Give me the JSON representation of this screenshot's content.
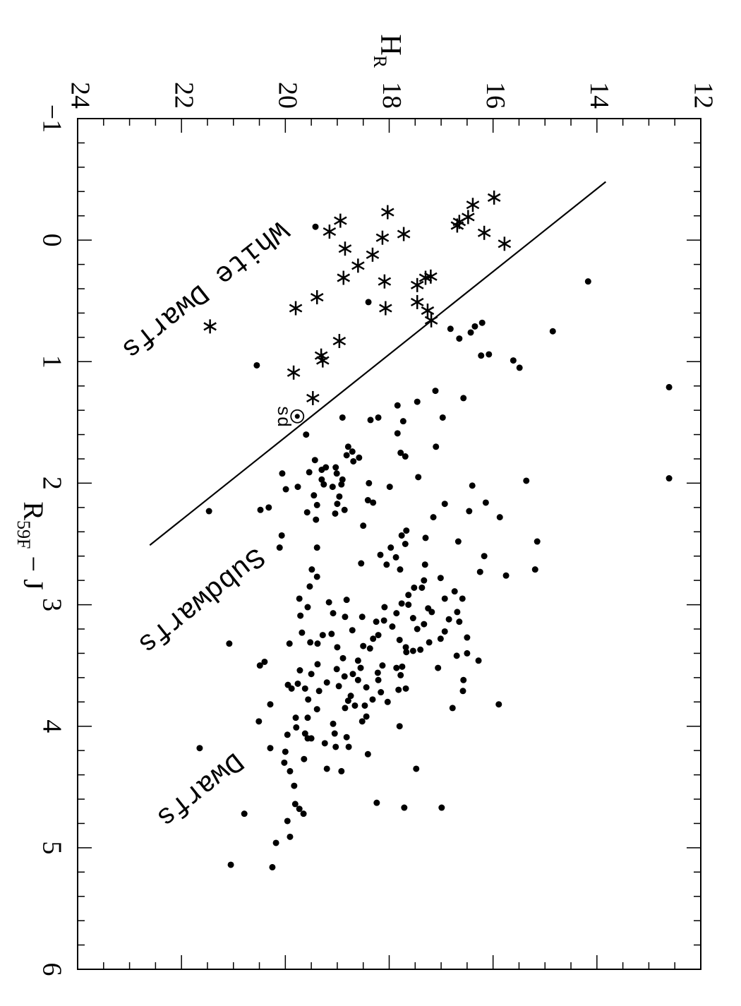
{
  "chart_data": {
    "type": "scatter",
    "xlabel": "R",
    "xlabel_sub": "59F",
    "xlabel_rest": " − J",
    "ylabel": "H",
    "ylabel_sub": "R",
    "xlim": [
      -1,
      6
    ],
    "xticks": [
      {
        "value": -1,
        "label": "−1"
      },
      0,
      1,
      2,
      3,
      4,
      5,
      6
    ],
    "xminor_ticks": [
      -0.8,
      -0.6,
      -0.4,
      -0.2,
      0.2,
      0.4,
      0.6,
      0.8,
      1.2,
      1.4,
      1.6,
      1.8,
      2.2,
      2.4,
      2.6,
      2.8,
      3.2,
      3.4,
      3.6,
      3.8,
      4.2,
      4.4,
      4.6,
      4.8,
      5.2,
      5.4,
      5.6,
      5.8
    ],
    "ylim": [
      24,
      12
    ],
    "yticks": [
      24,
      22,
      20,
      18,
      16,
      14,
      12
    ],
    "yminor_ticks": [
      23.5,
      23,
      22.5,
      21.5,
      21,
      20.5,
      19.5,
      19,
      18.5,
      17.5,
      17,
      16.5,
      15.5,
      15,
      14.5,
      13.5,
      13,
      12.5
    ],
    "annotations": [
      "White Dwarfs",
      "Subdwarfs",
      "Dwarfs",
      "sd"
    ],
    "series": [
      {
        "marker": "dot",
        "color": "#000000",
        "x": [
          0.34,
          0.75,
          0.68,
          0.71,
          0.76,
          0.81,
          0.73,
          0.94,
          0.95,
          0.99,
          1.05,
          0.51,
          -0.11,
          1.03,
          1.21,
          1.96,
          1.24,
          1.3,
          1.33,
          1.36,
          1.46,
          1.48,
          1.46,
          1.46,
          1.49,
          1.6,
          1.59,
          1.7,
          1.75,
          1.78,
          1.7,
          1.77,
          1.82,
          1.74,
          1.79,
          1.87,
          1.81,
          1.91,
          1.89,
          1.87,
          1.92,
          1.97,
          2.01,
          1.92,
          2.03,
          2.05,
          2.01,
          1.97,
          2.03,
          2.11,
          2.1,
          2.18,
          2.24,
          2.17,
          2.25,
          2.22,
          2.0,
          2.14,
          2.16,
          2.03,
          1.95,
          1.98,
          2.02,
          2.17,
          2.23,
          2.28,
          2.16,
          2.28,
          2.45,
          2.39,
          2.43,
          2.53,
          2.35,
          2.2,
          2.22,
          2.3,
          2.23,
          2.43,
          2.53,
          2.53,
          2.48,
          2.48,
          2.6,
          2.76,
          2.71,
          2.73,
          2.67,
          2.8,
          2.86,
          2.5,
          2.71,
          2.61,
          2.59,
          2.66,
          2.67,
          2.77,
          2.71,
          2.85,
          3.02,
          2.95,
          3.09,
          2.98,
          3.1,
          2.96,
          3.07,
          3.21,
          3.1,
          3.14,
          3.02,
          3.07,
          2.99,
          2.92,
          3.0,
          3.11,
          3.2,
          3.16,
          3.03,
          2.86,
          2.78,
          2.95,
          2.89,
          3.06,
          2.95,
          3.14,
          3.22,
          3.12,
          3.06,
          3.31,
          3.28,
          3.27,
          3.4,
          3.46,
          3.42,
          3.52,
          3.62,
          3.71,
          3.82,
          3.85,
          3.38,
          3.35,
          3.29,
          3.18,
          3.13,
          3.25,
          3.28,
          3.36,
          3.34,
          3.46,
          3.44,
          3.35,
          3.24,
          3.25,
          3.32,
          3.23,
          3.32,
          3.31,
          3.32,
          3.47,
          3.5,
          3.49,
          3.54,
          3.65,
          3.64,
          3.67,
          3.75,
          3.62,
          3.68,
          3.62,
          3.5,
          3.52,
          3.51,
          3.39,
          3.37,
          3.66,
          3.69,
          3.71,
          3.79,
          3.83,
          3.83,
          3.78,
          3.72,
          3.8,
          3.7,
          3.69,
          3.58,
          3.56,
          3.52,
          3.57,
          3.59,
          3.53,
          3.57,
          3.69,
          3.78,
          3.86,
          3.93,
          4.06,
          4.1,
          4.01,
          3.93,
          4.07,
          3.82,
          3.96,
          4.21,
          4.18,
          4.3,
          4.37,
          4.27,
          4.14,
          4.17,
          4.06,
          3.98,
          3.85,
          4.09,
          4.17,
          3.96,
          3.92,
          4.23,
          4.37,
          4.35,
          4.1,
          4.49,
          4.64,
          4.68,
          4.72,
          4.78,
          4.91,
          4.96,
          5.16,
          5.14,
          4.18,
          4.72,
          4.63,
          4.67,
          4.67,
          4.35,
          4.0
        ],
        "values": [
          14.17,
          14.85,
          16.21,
          16.35,
          16.43,
          16.65,
          16.82,
          16.08,
          16.23,
          15.61,
          15.49,
          18.4,
          19.42,
          20.55,
          12.61,
          12.61,
          17.11,
          16.57,
          17.46,
          17.84,
          16.97,
          18.36,
          18.21,
          18.9,
          17.73,
          19.6,
          17.84,
          17.1,
          17.78,
          17.69,
          18.79,
          18.82,
          18.69,
          18.71,
          18.58,
          19.03,
          19.43,
          19.54,
          19.3,
          19.22,
          19.01,
          18.9,
          18.92,
          20.06,
          19.76,
          19.99,
          19.26,
          19.3,
          19.09,
          18.96,
          19.45,
          19.39,
          19.58,
          19.0,
          19.04,
          18.86,
          18.39,
          18.41,
          18.31,
          17.99,
          17.44,
          15.36,
          16.4,
          16.93,
          16.46,
          15.87,
          16.14,
          17.15,
          17.3,
          17.67,
          17.76,
          17.97,
          18.5,
          20.32,
          20.48,
          19.41,
          21.47,
          20.07,
          20.11,
          19.39,
          15.15,
          16.67,
          16.17,
          15.75,
          15.19,
          16.25,
          17.31,
          17.33,
          17.52,
          17.69,
          17.79,
          17.87,
          18.17,
          18.54,
          18.05,
          19.39,
          19.49,
          19.53,
          19.57,
          19.73,
          19.71,
          19.16,
          18.85,
          18.82,
          19.08,
          18.71,
          18.52,
          18.25,
          18.09,
          17.86,
          17.76,
          17.63,
          17.63,
          17.54,
          17.46,
          17.33,
          17.25,
          17.37,
          17.01,
          16.93,
          16.74,
          16.69,
          16.59,
          16.65,
          16.93,
          16.85,
          17.18,
          17.23,
          17.01,
          16.5,
          16.5,
          16.28,
          16.7,
          17.06,
          16.57,
          16.58,
          15.89,
          16.78,
          17.54,
          17.68,
          17.8,
          17.94,
          18.1,
          18.21,
          18.31,
          18.37,
          18.5,
          18.6,
          18.89,
          19.0,
          19.11,
          19.28,
          19.38,
          19.68,
          19.92,
          19.52,
          21.08,
          20.4,
          20.49,
          19.38,
          19.72,
          19.76,
          19.2,
          18.97,
          18.74,
          18.6,
          18.44,
          18.21,
          18.13,
          17.86,
          17.75,
          17.67,
          17.4,
          19.95,
          19.88,
          19.35,
          18.79,
          18.66,
          18.47,
          18.32,
          18.16,
          18.03,
          17.82,
          17.68,
          17.78,
          18.22,
          18.55,
          18.7,
          18.86,
          19.01,
          19.5,
          19.62,
          19.56,
          19.39,
          19.57,
          19.62,
          19.57,
          19.79,
          19.8,
          19.96,
          20.29,
          20.51,
          20.0,
          20.29,
          20.02,
          19.91,
          19.64,
          19.24,
          19.03,
          19.05,
          19.08,
          18.85,
          18.82,
          18.78,
          18.52,
          18.44,
          18.41,
          18.92,
          19.2,
          19.5,
          19.83,
          19.81,
          19.73,
          19.65,
          19.96,
          19.91,
          20.18,
          20.25,
          21.05,
          21.65,
          20.79,
          18.24,
          17.71,
          16.99,
          17.48,
          17.8
        ]
      },
      {
        "marker": "asterisk",
        "color": "#000000",
        "x": [
          -0.35,
          -0.29,
          -0.19,
          -0.15,
          -0.12,
          -0.06,
          0.03,
          -0.23,
          -0.05,
          -0.02,
          -0.16,
          -0.07,
          0.07,
          0.12,
          0.21,
          0.31,
          0.31,
          0.3,
          0.34,
          0.37,
          0.47,
          0.56,
          0.51,
          0.56,
          0.58,
          0.66,
          0.71,
          0.83,
          0.95,
          0.99,
          1.09,
          1.3
        ],
        "values": [
          15.98,
          16.39,
          16.48,
          16.65,
          16.69,
          16.17,
          15.78,
          18.03,
          17.72,
          18.13,
          18.94,
          19.15,
          18.85,
          18.32,
          18.6,
          18.88,
          17.3,
          17.2,
          18.09,
          17.46,
          19.39,
          19.8,
          17.46,
          18.07,
          17.26,
          17.19,
          21.45,
          18.96,
          19.31,
          19.28,
          19.84,
          19.47
        ]
      },
      {
        "marker": "circled-dot",
        "color": "#000000",
        "x": [
          1.45
        ],
        "values": [
          19.77
        ]
      },
      {
        "marker": "line",
        "color": "#000000",
        "x": [
          -0.48,
          2.51
        ],
        "values": [
          13.83,
          22.61
        ]
      }
    ]
  }
}
